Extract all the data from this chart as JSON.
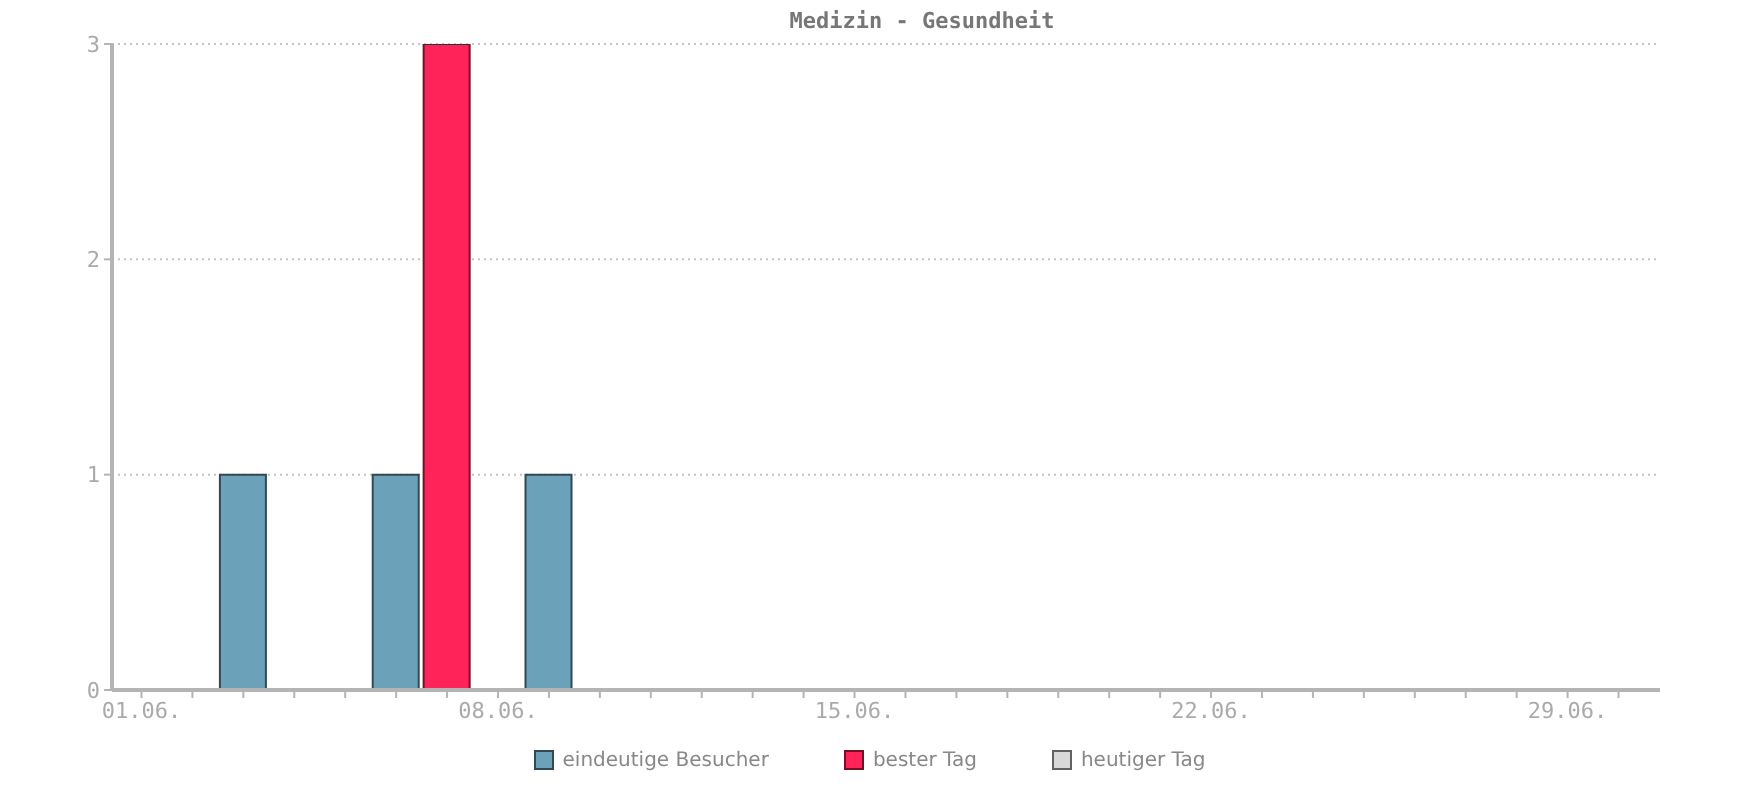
{
  "chart_data": {
    "type": "bar",
    "title": "Medizin - Gesundheit",
    "categories": [
      "01.06.",
      null,
      null,
      null,
      null,
      null,
      null,
      "08.06.",
      null,
      null,
      null,
      null,
      null,
      null,
      "15.06.",
      null,
      null,
      null,
      null,
      null,
      null,
      "22.06.",
      null,
      null,
      null,
      null,
      null,
      null,
      "29.06.",
      null
    ],
    "series": [
      {
        "name": "eindeutige Besucher",
        "color": "#6ca2b9",
        "values": [
          0,
          0,
          1,
          0,
          0,
          1,
          null,
          0,
          1,
          0,
          0,
          0,
          0,
          0,
          0,
          0,
          0,
          0,
          0,
          0,
          0,
          0,
          0,
          0,
          0,
          0,
          0,
          0,
          0,
          0
        ]
      },
      {
        "name": "bester Tag",
        "color": "#ff2359",
        "values": [
          null,
          null,
          null,
          null,
          null,
          null,
          3,
          null,
          null,
          null,
          null,
          null,
          null,
          null,
          null,
          null,
          null,
          null,
          null,
          null,
          null,
          null,
          null,
          null,
          null,
          null,
          null,
          null,
          null,
          null
        ]
      },
      {
        "name": "heutiger Tag",
        "color": "#d8d8d8",
        "values": [
          null,
          null,
          null,
          null,
          null,
          null,
          null,
          null,
          null,
          null,
          null,
          null,
          null,
          null,
          null,
          null,
          null,
          null,
          null,
          null,
          null,
          null,
          null,
          null,
          null,
          null,
          null,
          null,
          null,
          null
        ]
      }
    ],
    "stacked": true,
    "ylim": [
      0,
      3
    ],
    "yticks": [
      0,
      1,
      2,
      3
    ],
    "grid": "y",
    "legend": "bottom"
  }
}
